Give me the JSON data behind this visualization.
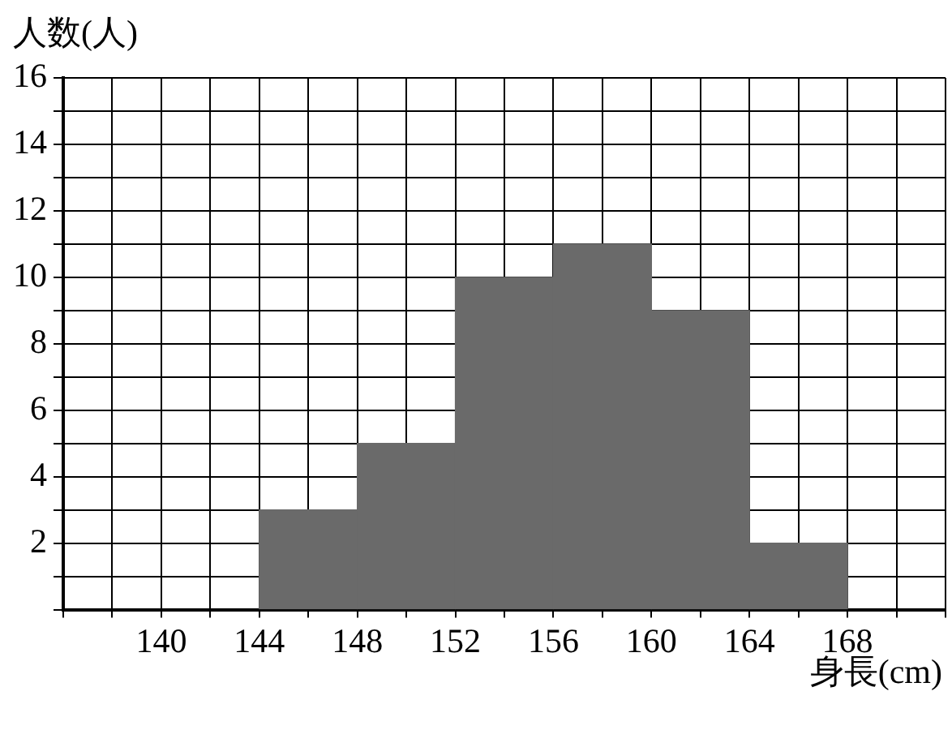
{
  "chart_data": {
    "type": "histogram",
    "xlabel": "身長(cm)",
    "ylabel": "人数(人)",
    "bins": [
      144,
      148,
      152,
      156,
      160,
      164,
      168
    ],
    "values": [
      3,
      5,
      10,
      11,
      9,
      2
    ],
    "color": "#6a6a6a",
    "xlim": [
      136,
      172
    ],
    "xticks": [
      {
        "value": 136,
        "label": null
      },
      {
        "value": 138,
        "label": null
      },
      140,
      {
        "value": 142,
        "label": null
      },
      144,
      {
        "value": 146,
        "label": null
      },
      148,
      {
        "value": 150,
        "label": null
      },
      152,
      {
        "value": 154,
        "label": null
      },
      156,
      {
        "value": 158,
        "label": null
      },
      160,
      {
        "value": 162,
        "label": null
      },
      164,
      {
        "value": 166,
        "label": null
      },
      168,
      {
        "value": 170,
        "label": null
      },
      {
        "value": 172,
        "label": null
      }
    ],
    "ylim": [
      0,
      16
    ],
    "yticks": [
      {
        "value": 0,
        "label": null
      },
      {
        "value": 1,
        "label": null
      },
      2,
      {
        "value": 3,
        "label": null
      },
      4,
      {
        "value": 5,
        "label": null
      },
      6,
      {
        "value": 7,
        "label": null
      },
      8,
      {
        "value": 9,
        "label": null
      },
      10,
      {
        "value": 11,
        "label": null
      },
      12,
      {
        "value": 13,
        "label": null
      },
      14,
      {
        "value": 15,
        "label": null
      },
      16
    ],
    "grid": true,
    "legend": false
  }
}
